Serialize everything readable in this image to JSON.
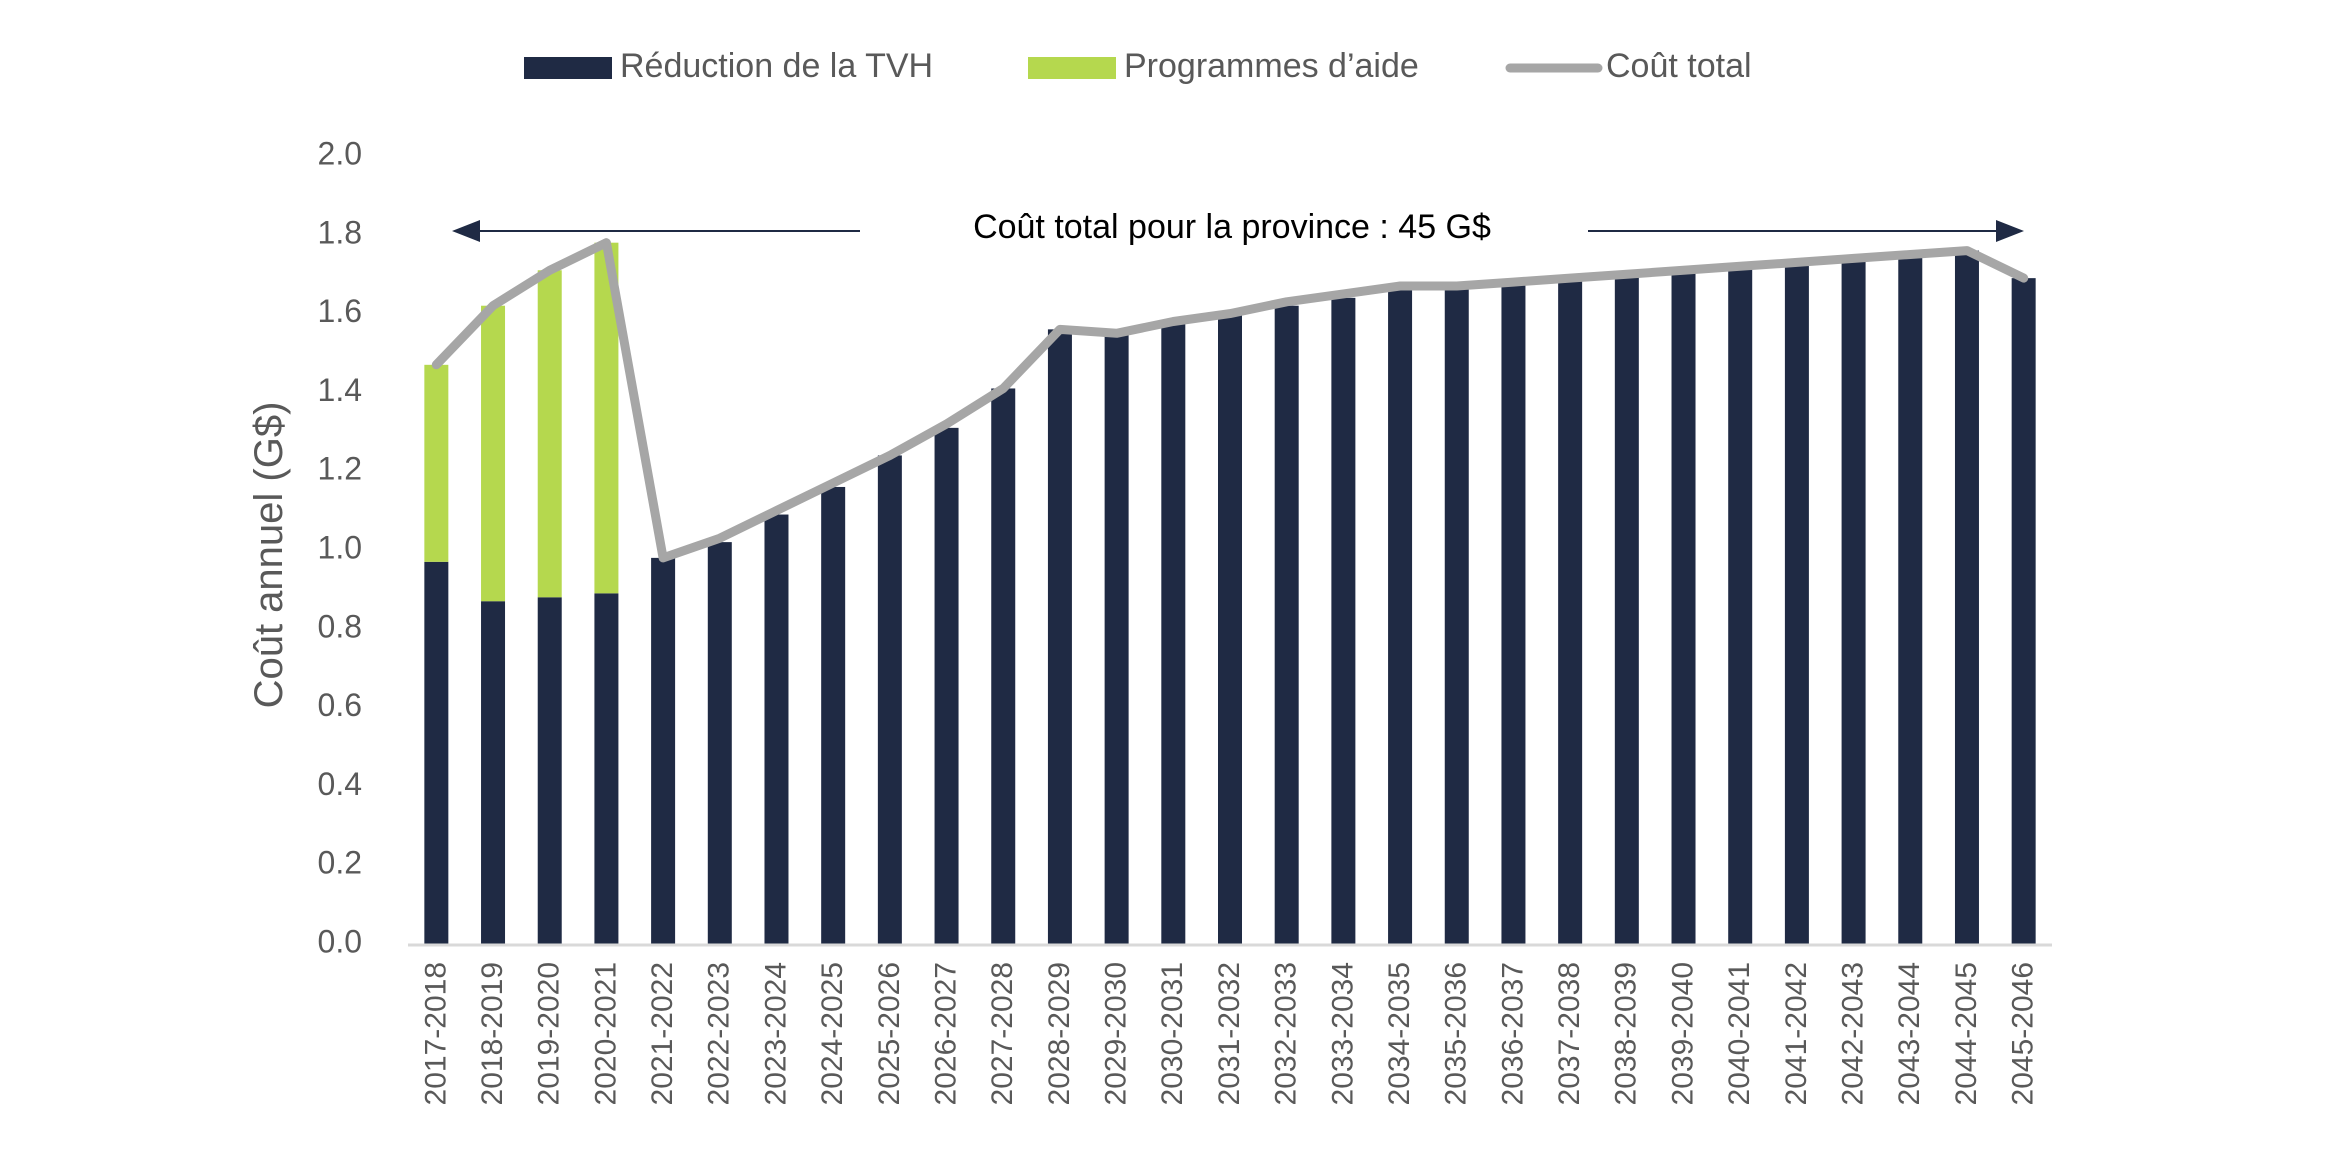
{
  "chart_data": {
    "type": "bar",
    "stacked": true,
    "categories": [
      "2017-2018",
      "2018-2019",
      "2019-2020",
      "2020-2021",
      "2021-2022",
      "2022-2023",
      "2023-2024",
      "2024-2025",
      "2025-2026",
      "2026-2027",
      "2027-2028",
      "2028-2029",
      "2029-2030",
      "2030-2031",
      "2031-2032",
      "2032-2033",
      "2033-2034",
      "2034-2035",
      "2035-2036",
      "2036-2037",
      "2037-2038",
      "2038-2039",
      "2039-2040",
      "2040-2041",
      "2041-2042",
      "2042-2043",
      "2043-2044",
      "2044-2045",
      "2045-2046"
    ],
    "series": [
      {
        "name": "Réduction de la TVH",
        "type": "bar",
        "color": "#1f2a44",
        "values": [
          0.97,
          0.87,
          0.88,
          0.89,
          0.98,
          1.02,
          1.09,
          1.16,
          1.24,
          1.31,
          1.41,
          1.56,
          1.55,
          1.58,
          1.6,
          1.62,
          1.64,
          1.67,
          1.67,
          1.68,
          1.69,
          1.7,
          1.71,
          1.72,
          1.73,
          1.74,
          1.75,
          1.76,
          1.69
        ]
      },
      {
        "name": "Programmes d’aide",
        "type": "bar",
        "color": "#b5d84e",
        "values": [
          0.5,
          0.75,
          0.83,
          0.89,
          0,
          0,
          0,
          0,
          0,
          0,
          0,
          0,
          0,
          0,
          0,
          0,
          0,
          0,
          0,
          0,
          0,
          0,
          0,
          0,
          0,
          0,
          0,
          0,
          0
        ]
      },
      {
        "name": "Coût total",
        "type": "line",
        "color": "#a6a6a6",
        "values": [
          1.47,
          1.62,
          1.71,
          1.78,
          0.98,
          1.03,
          1.1,
          1.17,
          1.24,
          1.32,
          1.41,
          1.56,
          1.55,
          1.58,
          1.6,
          1.63,
          1.65,
          1.67,
          1.67,
          1.68,
          1.69,
          1.7,
          1.71,
          1.72,
          1.73,
          1.74,
          1.75,
          1.76,
          1.69
        ]
      }
    ],
    "title": "",
    "xlabel": "",
    "ylabel": "Coût annuel (G$)",
    "ylim": [
      0,
      2.0
    ],
    "yticks": [
      "0.0",
      "0.2",
      "0.4",
      "0.6",
      "0.8",
      "1.0",
      "1.2",
      "1.4",
      "1.6",
      "1.8",
      "2.0"
    ],
    "grid": false,
    "legend_position": "top",
    "annotation": {
      "text": "Coût total pour la province : 45 G$",
      "y": 1.84,
      "arrow_color": "#1f2a44"
    }
  }
}
